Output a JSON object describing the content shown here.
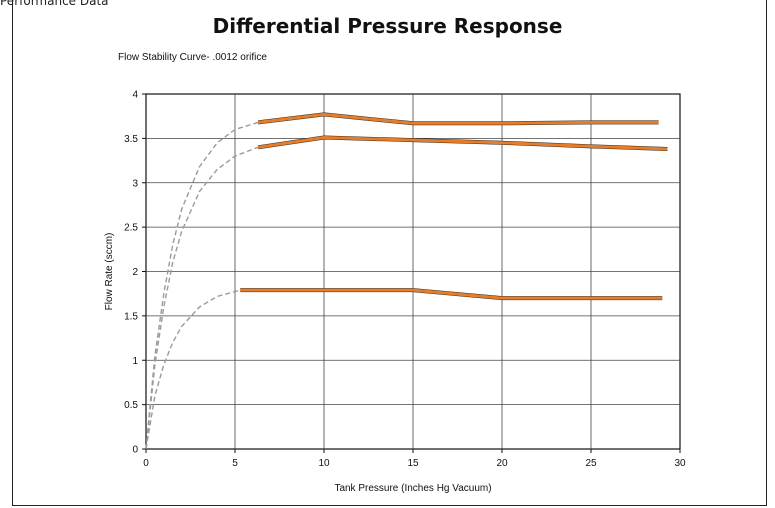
{
  "header": {
    "top_text": "Performance Data",
    "title": "Differential Pressure Response"
  },
  "chart_data": {
    "type": "line",
    "title": "Flow Stability Curve- .0012 orifice",
    "xlabel": "Tank Pressure (Inches Hg Vacuum)",
    "ylabel": "Flow Rate (sccm)",
    "xlim": [
      0,
      30
    ],
    "ylim": [
      0,
      4
    ],
    "xticks": [
      0,
      5,
      10,
      15,
      20,
      25,
      30
    ],
    "yticks": [
      0,
      0.5,
      1,
      1.5,
      2,
      2.5,
      3,
      3.5,
      4
    ],
    "ytick_labels": [
      "0",
      "0.5",
      "1",
      "1.5",
      "2",
      "2.5",
      "3",
      "3.5",
      "4"
    ],
    "grid": true,
    "series": [
      {
        "style": "solid",
        "color": "#e57e2c",
        "x": [
          6.3,
          10,
          15,
          20,
          25,
          28.8
        ],
        "y": [
          3.68,
          3.77,
          3.67,
          3.67,
          3.68,
          3.68
        ]
      },
      {
        "style": "solid",
        "color": "#e57e2c",
        "x": [
          6.3,
          10,
          15,
          20,
          25,
          29.3
        ],
        "y": [
          3.4,
          3.51,
          3.48,
          3.45,
          3.41,
          3.38
        ]
      },
      {
        "style": "solid",
        "color": "#e57e2c",
        "x": [
          5.3,
          10,
          15,
          20,
          25,
          29
        ],
        "y": [
          1.79,
          1.79,
          1.79,
          1.7,
          1.7,
          1.7
        ]
      },
      {
        "style": "dashed",
        "color": "#9a9a9a",
        "x": [
          0,
          0.5,
          1,
          1.5,
          2,
          3,
          4,
          5,
          6.3
        ],
        "y": [
          0,
          1.05,
          1.75,
          2.3,
          2.7,
          3.18,
          3.45,
          3.6,
          3.68
        ]
      },
      {
        "style": "dashed",
        "color": "#9a9a9a",
        "x": [
          0,
          0.5,
          1,
          1.5,
          2,
          3,
          4,
          5,
          6.3
        ],
        "y": [
          0,
          0.95,
          1.6,
          2.1,
          2.45,
          2.9,
          3.15,
          3.3,
          3.4
        ]
      },
      {
        "style": "dashed",
        "color": "#9a9a9a",
        "x": [
          0,
          0.5,
          1,
          1.5,
          2,
          3,
          4,
          5.3
        ],
        "y": [
          0,
          0.6,
          0.95,
          1.2,
          1.38,
          1.6,
          1.72,
          1.79
        ]
      }
    ]
  }
}
